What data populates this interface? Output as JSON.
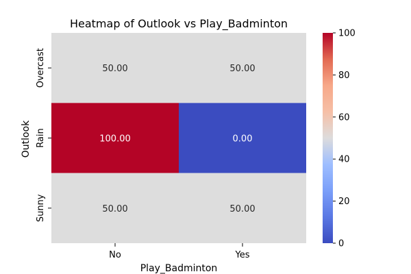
{
  "chart_data": {
    "type": "heatmap",
    "title": "Heatmap of Outlook vs Play_Badminton",
    "xlabel": "Play_Badminton",
    "ylabel": "Outlook",
    "x_categories": [
      "No",
      "Yes"
    ],
    "y_categories": [
      "Overcast",
      "Rain",
      "Sunny"
    ],
    "values": [
      [
        50.0,
        50.0
      ],
      [
        100.0,
        0.0
      ],
      [
        50.0,
        50.0
      ]
    ],
    "cell_labels": [
      [
        "50.00",
        "50.00"
      ],
      [
        "100.00",
        "0.00"
      ],
      [
        "50.00",
        "50.00"
      ]
    ],
    "colormap": "coolwarm",
    "color_range": [
      0,
      100
    ],
    "colorbar_ticks": [
      "0",
      "20",
      "40",
      "60",
      "80",
      "100"
    ],
    "colorbar_tick_values": [
      0,
      20,
      40,
      60,
      80,
      100
    ],
    "grid": false,
    "colors": {
      "low": "#3b4cc0",
      "mid": "#dddddd",
      "high": "#b40426"
    }
  }
}
